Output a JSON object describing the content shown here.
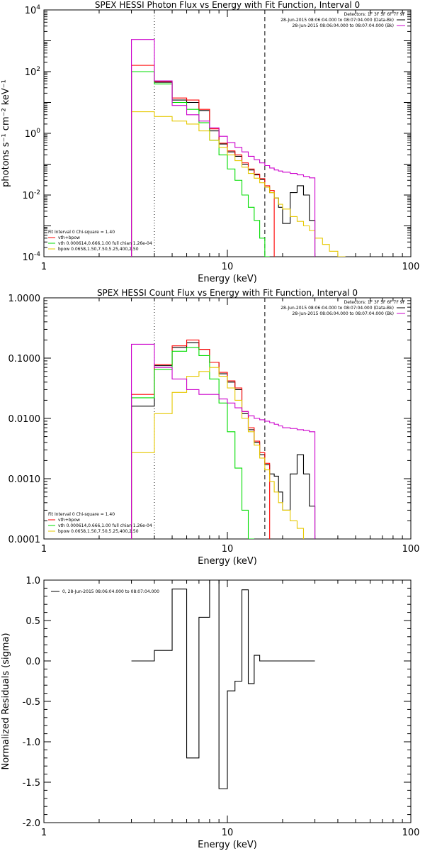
{
  "colors": {
    "data": "#000000",
    "total": "#ff0000",
    "vth": "#00dd00",
    "bpow": "#e6c800",
    "bk": "#cc00cc"
  },
  "chart_data": [
    {
      "type": "line",
      "title": "SPEX HESSI Photon Flux vs Energy with Fit Function, Interval 0",
      "xlabel": "Energy (keV)",
      "ylabel": "photons s⁻¹ cm⁻² keV⁻¹",
      "xscale": "log",
      "yscale": "log",
      "xlim": [
        1,
        100
      ],
      "ylim": [
        0.0001,
        10000
      ],
      "xticks": [
        {
          "value": 1,
          "label": "1"
        },
        {
          "value": 10,
          "label": "10"
        },
        {
          "value": 100,
          "label": "100"
        }
      ],
      "yticks": [
        {
          "value": 0.0001,
          "base": "10",
          "exp": "-4"
        },
        {
          "value": 0.01,
          "base": "10",
          "exp": "-2"
        },
        {
          "value": 1,
          "base": "10",
          "exp": "0"
        },
        {
          "value": 100,
          "base": "10",
          "exp": "2"
        },
        {
          "value": 10000,
          "base": "10",
          "exp": "4"
        }
      ],
      "vlines": [
        {
          "x": 4.0,
          "style": "dotted"
        },
        {
          "x": 16.0,
          "style": "dashed"
        }
      ],
      "bin_edges": [
        3,
        4,
        5,
        6,
        7,
        8,
        9,
        10,
        11,
        12,
        13,
        14,
        15,
        16,
        17,
        18,
        19,
        20,
        22,
        24,
        26,
        28,
        30,
        33,
        36,
        40,
        44,
        48
      ],
      "series": [
        {
          "name": "data",
          "color_key": "data",
          "values": [
            100,
            45,
            12,
            10,
            5.5,
            1.2,
            0.45,
            0.25,
            0.18,
            0.1,
            0.065,
            0.045,
            0.032,
            0.018,
            0.012,
            0.008,
            0.004,
            0.0012,
            0.012,
            0.02,
            0.01,
            0.0015,
            null,
            null,
            null,
            null,
            null
          ]
        },
        {
          "name": "vth+bpow",
          "color_key": "total",
          "values": [
            160,
            48,
            14,
            12,
            6,
            1.4,
            0.48,
            0.27,
            0.2,
            0.11,
            0.07,
            0.048,
            0.034,
            0.02,
            0.014,
            null,
            null,
            null,
            null,
            null,
            null,
            null,
            null,
            null,
            null,
            null,
            null
          ]
        },
        {
          "name": "vth",
          "color_key": "vth",
          "values": [
            100,
            40,
            10,
            6,
            2.2,
            0.6,
            0.2,
            0.07,
            0.03,
            0.01,
            0.004,
            0.0015,
            0.0004,
            0.0001,
            null,
            null,
            null,
            null,
            null,
            null,
            null,
            null,
            null,
            null,
            null,
            null,
            null
          ]
        },
        {
          "name": "bpow",
          "color_key": "bpow",
          "values": [
            5,
            3.5,
            2.5,
            2.0,
            1.2,
            0.6,
            0.35,
            0.2,
            0.13,
            0.08,
            0.05,
            0.035,
            0.025,
            0.018,
            0.012,
            0.008,
            0.005,
            0.0035,
            0.002,
            0.0014,
            0.001,
            0.0007,
            0.0004,
            0.00025,
            0.00015,
            0.0001,
            null
          ]
        },
        {
          "name": "bk",
          "color_key": "bk",
          "values": [
            1100,
            50,
            8,
            4,
            2.5,
            1.5,
            0.8,
            0.5,
            0.35,
            0.25,
            0.18,
            0.14,
            0.11,
            0.09,
            0.075,
            0.065,
            0.06,
            0.055,
            0.05,
            0.045,
            0.04,
            0.036,
            null,
            null,
            null,
            null,
            null
          ]
        }
      ],
      "legend": {
        "placement": "top-right",
        "lines": [
          "Detectors: 1F 3F 5F 6F 7F 9F",
          "28-Jun-2015 08:06:04.000 to 08:07:04.000 (Data-Bk)",
          "28-Jun-2015 08:06:04.000 to 08:07:04.000 (Bk)"
        ]
      },
      "fit_text": [
        "Fit Interval 0   Chi-square = 1.40",
        "vth+bpow",
        "vth 0.000614,0.666,1.00  full chian 1.26e-04",
        "bpow 0.0658,1.50,7.50,5.25,400,2.50"
      ]
    },
    {
      "type": "line",
      "title": "SPEX HESSI Count Flux vs Energy with Fit Function, Interval 0",
      "xlabel": "Energy (keV)",
      "ylabel": "",
      "xscale": "log",
      "yscale": "log",
      "xlim": [
        1,
        100
      ],
      "ylim": [
        0.0001,
        1
      ],
      "xticks": [
        {
          "value": 1,
          "label": "1"
        },
        {
          "value": 10,
          "label": "10"
        },
        {
          "value": 100,
          "label": "100"
        }
      ],
      "yticks": [
        {
          "value": 0.0001,
          "label": "0.0001"
        },
        {
          "value": 0.001,
          "label": "0.0010"
        },
        {
          "value": 0.01,
          "label": "0.0100"
        },
        {
          "value": 0.1,
          "label": "0.1000"
        },
        {
          "value": 1,
          "label": "1.0000"
        }
      ],
      "vlines": [
        {
          "x": 4.0,
          "style": "dotted"
        },
        {
          "x": 16.0,
          "style": "dashed"
        }
      ],
      "bin_edges": [
        3,
        4,
        5,
        6,
        7,
        8,
        9,
        10,
        11,
        12,
        13,
        14,
        15,
        16,
        17,
        18,
        19,
        20,
        22,
        24,
        26,
        28,
        30,
        33,
        36,
        40,
        44,
        48
      ],
      "series": [
        {
          "name": "data",
          "color_key": "data",
          "values": [
            0.016,
            0.075,
            0.15,
            0.18,
            0.14,
            0.085,
            0.055,
            0.04,
            0.03,
            0.012,
            0.0065,
            0.004,
            0.0025,
            0.0017,
            0.0012,
            0.0011,
            0.0006,
            0.0003,
            0.0012,
            0.0025,
            0.0012,
            0.00035,
            null,
            null,
            null,
            null,
            null
          ]
        },
        {
          "name": "vth+bpow",
          "color_key": "total",
          "values": [
            0.025,
            0.078,
            0.16,
            0.2,
            0.14,
            0.085,
            0.058,
            0.042,
            0.032,
            0.013,
            0.007,
            0.0042,
            0.0027,
            0.0018,
            null,
            null,
            null,
            null,
            null,
            null,
            null,
            null,
            null,
            null,
            null,
            null,
            null
          ]
        },
        {
          "name": "vth",
          "color_key": "vth",
          "values": [
            0.022,
            0.065,
            0.13,
            0.15,
            0.11,
            0.045,
            0.018,
            0.006,
            0.0015,
            0.0003,
            0.0001,
            null,
            null,
            null,
            null,
            null,
            null,
            null,
            null,
            null,
            null,
            null,
            null,
            null,
            null,
            null,
            null
          ]
        },
        {
          "name": "bpow",
          "color_key": "bpow",
          "values": [
            0.0027,
            0.012,
            0.027,
            0.05,
            0.06,
            0.07,
            0.05,
            0.032,
            0.02,
            0.01,
            0.006,
            0.0036,
            0.0022,
            0.0014,
            0.0009,
            0.0006,
            0.0004,
            0.0003,
            0.0002,
            0.00015,
            null,
            null,
            null,
            null,
            null,
            null,
            null
          ]
        },
        {
          "name": "bk",
          "color_key": "bk",
          "values": [
            0.17,
            0.07,
            0.045,
            0.03,
            0.025,
            0.025,
            0.021,
            0.018,
            0.015,
            0.013,
            0.011,
            0.01,
            0.0095,
            0.009,
            0.0085,
            0.008,
            0.0075,
            0.007,
            0.0068,
            0.0065,
            0.0063,
            0.006,
            null,
            null,
            null,
            null,
            null
          ]
        }
      ],
      "legend": {
        "placement": "top-right",
        "lines": [
          "Detectors: 1F 3F 5F 6F 7F 9F",
          "28-Jun-2015 08:06:04.000 to 08:07:04.000 (Data-Bk)",
          "28-Jun-2015 08:06:04.000 to 08:07:04.000 (Bk)"
        ]
      },
      "fit_text": [
        "Fit Interval 0   Chi-square = 1.40",
        "vth+bpow",
        "vth 0.000614,0.666,1.00  full chian 1.26e-04",
        "bpow 0.0658,1.50,7.50,5.25,400,2.50"
      ]
    },
    {
      "type": "line",
      "title": "",
      "xlabel": "Energy (keV)",
      "ylabel": "Normalized Residuals (sigma)",
      "xscale": "log",
      "yscale": "linear",
      "xlim": [
        1,
        100
      ],
      "ylim": [
        -2.0,
        1.0
      ],
      "xticks": [
        {
          "value": 1,
          "label": "1"
        },
        {
          "value": 10,
          "label": "10"
        },
        {
          "value": 100,
          "label": "100"
        }
      ],
      "yticks": [
        {
          "value": 1.0,
          "label": "1.0"
        },
        {
          "value": 0.5,
          "label": "0.5"
        },
        {
          "value": 0.0,
          "label": "0.0"
        },
        {
          "value": -0.5,
          "label": "-0.5"
        },
        {
          "value": -1.0,
          "label": "-1.0"
        },
        {
          "value": -1.5,
          "label": "-1.5"
        },
        {
          "value": -2.0,
          "label": "-2.0"
        }
      ],
      "bin_edges": [
        3,
        4,
        5,
        6,
        7,
        8,
        9,
        10,
        11,
        12,
        13,
        14,
        15,
        16,
        17,
        18,
        19,
        20,
        22,
        24,
        26,
        28,
        30,
        33
      ],
      "series": [
        {
          "name": "0, 28-Jun-2015 08:06:04.000 to 08:07:04.000",
          "color_key": "data",
          "values": [
            0.0,
            0.13,
            0.89,
            -1.2,
            0.54,
            1.0,
            -1.58,
            -0.37,
            -0.25,
            0.88,
            -0.28,
            0.07,
            0.0,
            0.0,
            0.0,
            0.0,
            0.0,
            0.0,
            0.0,
            0.0,
            0.0,
            0.0
          ]
        }
      ],
      "legend": {
        "placement": "top-left",
        "lines": [
          "0, 28-Jun-2015 08:06:04.000 to 08:07:04.000"
        ]
      }
    }
  ]
}
